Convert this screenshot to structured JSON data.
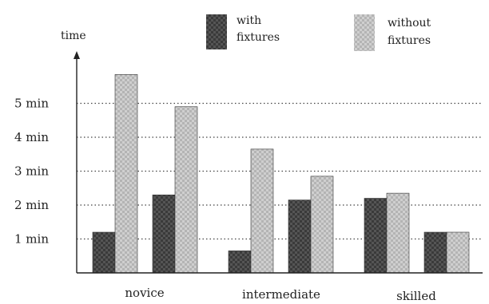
{
  "chart_data": {
    "type": "bar",
    "ylabel": "time",
    "categories": [
      "novice",
      "intermediate",
      "skilled"
    ],
    "group_offsets": [
      0,
      1
    ],
    "series": [
      {
        "name": "with fixtures",
        "color": "#3a3a3a",
        "values": [
          [
            1.2,
            2.3
          ],
          [
            0.65,
            2.15
          ],
          [
            2.2,
            1.2
          ]
        ]
      },
      {
        "name": "without fixtures",
        "color": "#b0b0b0",
        "values": [
          [
            5.85,
            4.9
          ],
          [
            3.65,
            2.85
          ],
          [
            2.35,
            1.2
          ]
        ]
      }
    ],
    "yticks": [
      {
        "value": 1,
        "label": "1 min"
      },
      {
        "value": 2,
        "label": "2 min"
      },
      {
        "value": 3,
        "label": "3 min"
      },
      {
        "value": 4,
        "label": "4 min"
      },
      {
        "value": 5,
        "label": "5 min"
      }
    ],
    "ylim": [
      0,
      6.4
    ],
    "grid": "horizontal-dotted",
    "legend": {
      "position": "top",
      "entries": [
        {
          "line1": "with",
          "line2": "fixtures"
        },
        {
          "line1": "without",
          "line2": "fixtures"
        }
      ]
    }
  }
}
